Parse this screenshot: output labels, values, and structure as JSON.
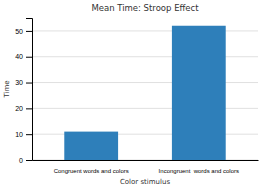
{
  "chart_data": {
    "type": "bar",
    "title": "Mean Time: Stroop Effect",
    "xlabel": "Color stimulus",
    "ylabel": "Time",
    "categories": [
      "Congruent words and colors",
      "Incongruent  words and colors"
    ],
    "values": [
      11,
      52
    ],
    "color": "#2e7fba",
    "ylim": [
      0,
      55
    ],
    "yticks": [
      0,
      10,
      20,
      30,
      40,
      50
    ],
    "grid": true
  }
}
